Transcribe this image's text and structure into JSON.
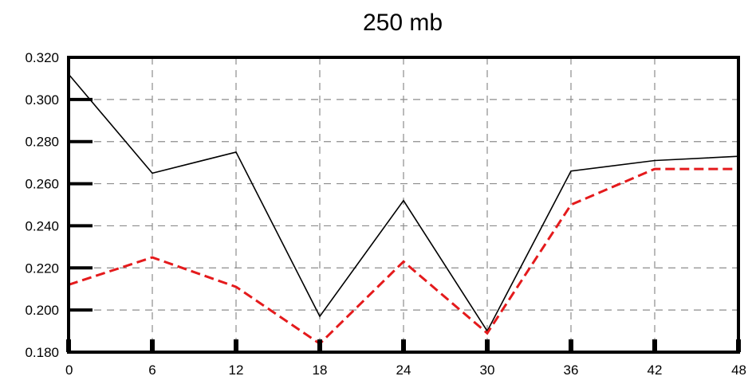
{
  "chart_data": {
    "type": "line",
    "title": "250 mb",
    "xlabel": "",
    "ylabel": "",
    "x": [
      0,
      6,
      12,
      18,
      24,
      30,
      36,
      42,
      48
    ],
    "xlim": [
      0,
      48
    ],
    "ylim": [
      0.18,
      0.32
    ],
    "x_ticks": [
      "0",
      "6",
      "12",
      "18",
      "24",
      "30",
      "36",
      "42",
      "48"
    ],
    "y_ticks": [
      "0.180",
      "0.200",
      "0.220",
      "0.240",
      "0.260",
      "0.280",
      "0.300",
      "0.320"
    ],
    "grid": true,
    "series": [
      {
        "values": [
          0.312,
          0.265,
          0.275,
          0.197,
          0.252,
          0.19,
          0.266,
          0.271,
          0.273
        ],
        "color": "#000000",
        "style": "solid"
      },
      {
        "values": [
          0.212,
          0.225,
          0.211,
          0.184,
          0.223,
          0.189,
          0.25,
          0.267,
          0.267
        ],
        "color": "#e41a1c",
        "style": "dashed"
      }
    ]
  }
}
